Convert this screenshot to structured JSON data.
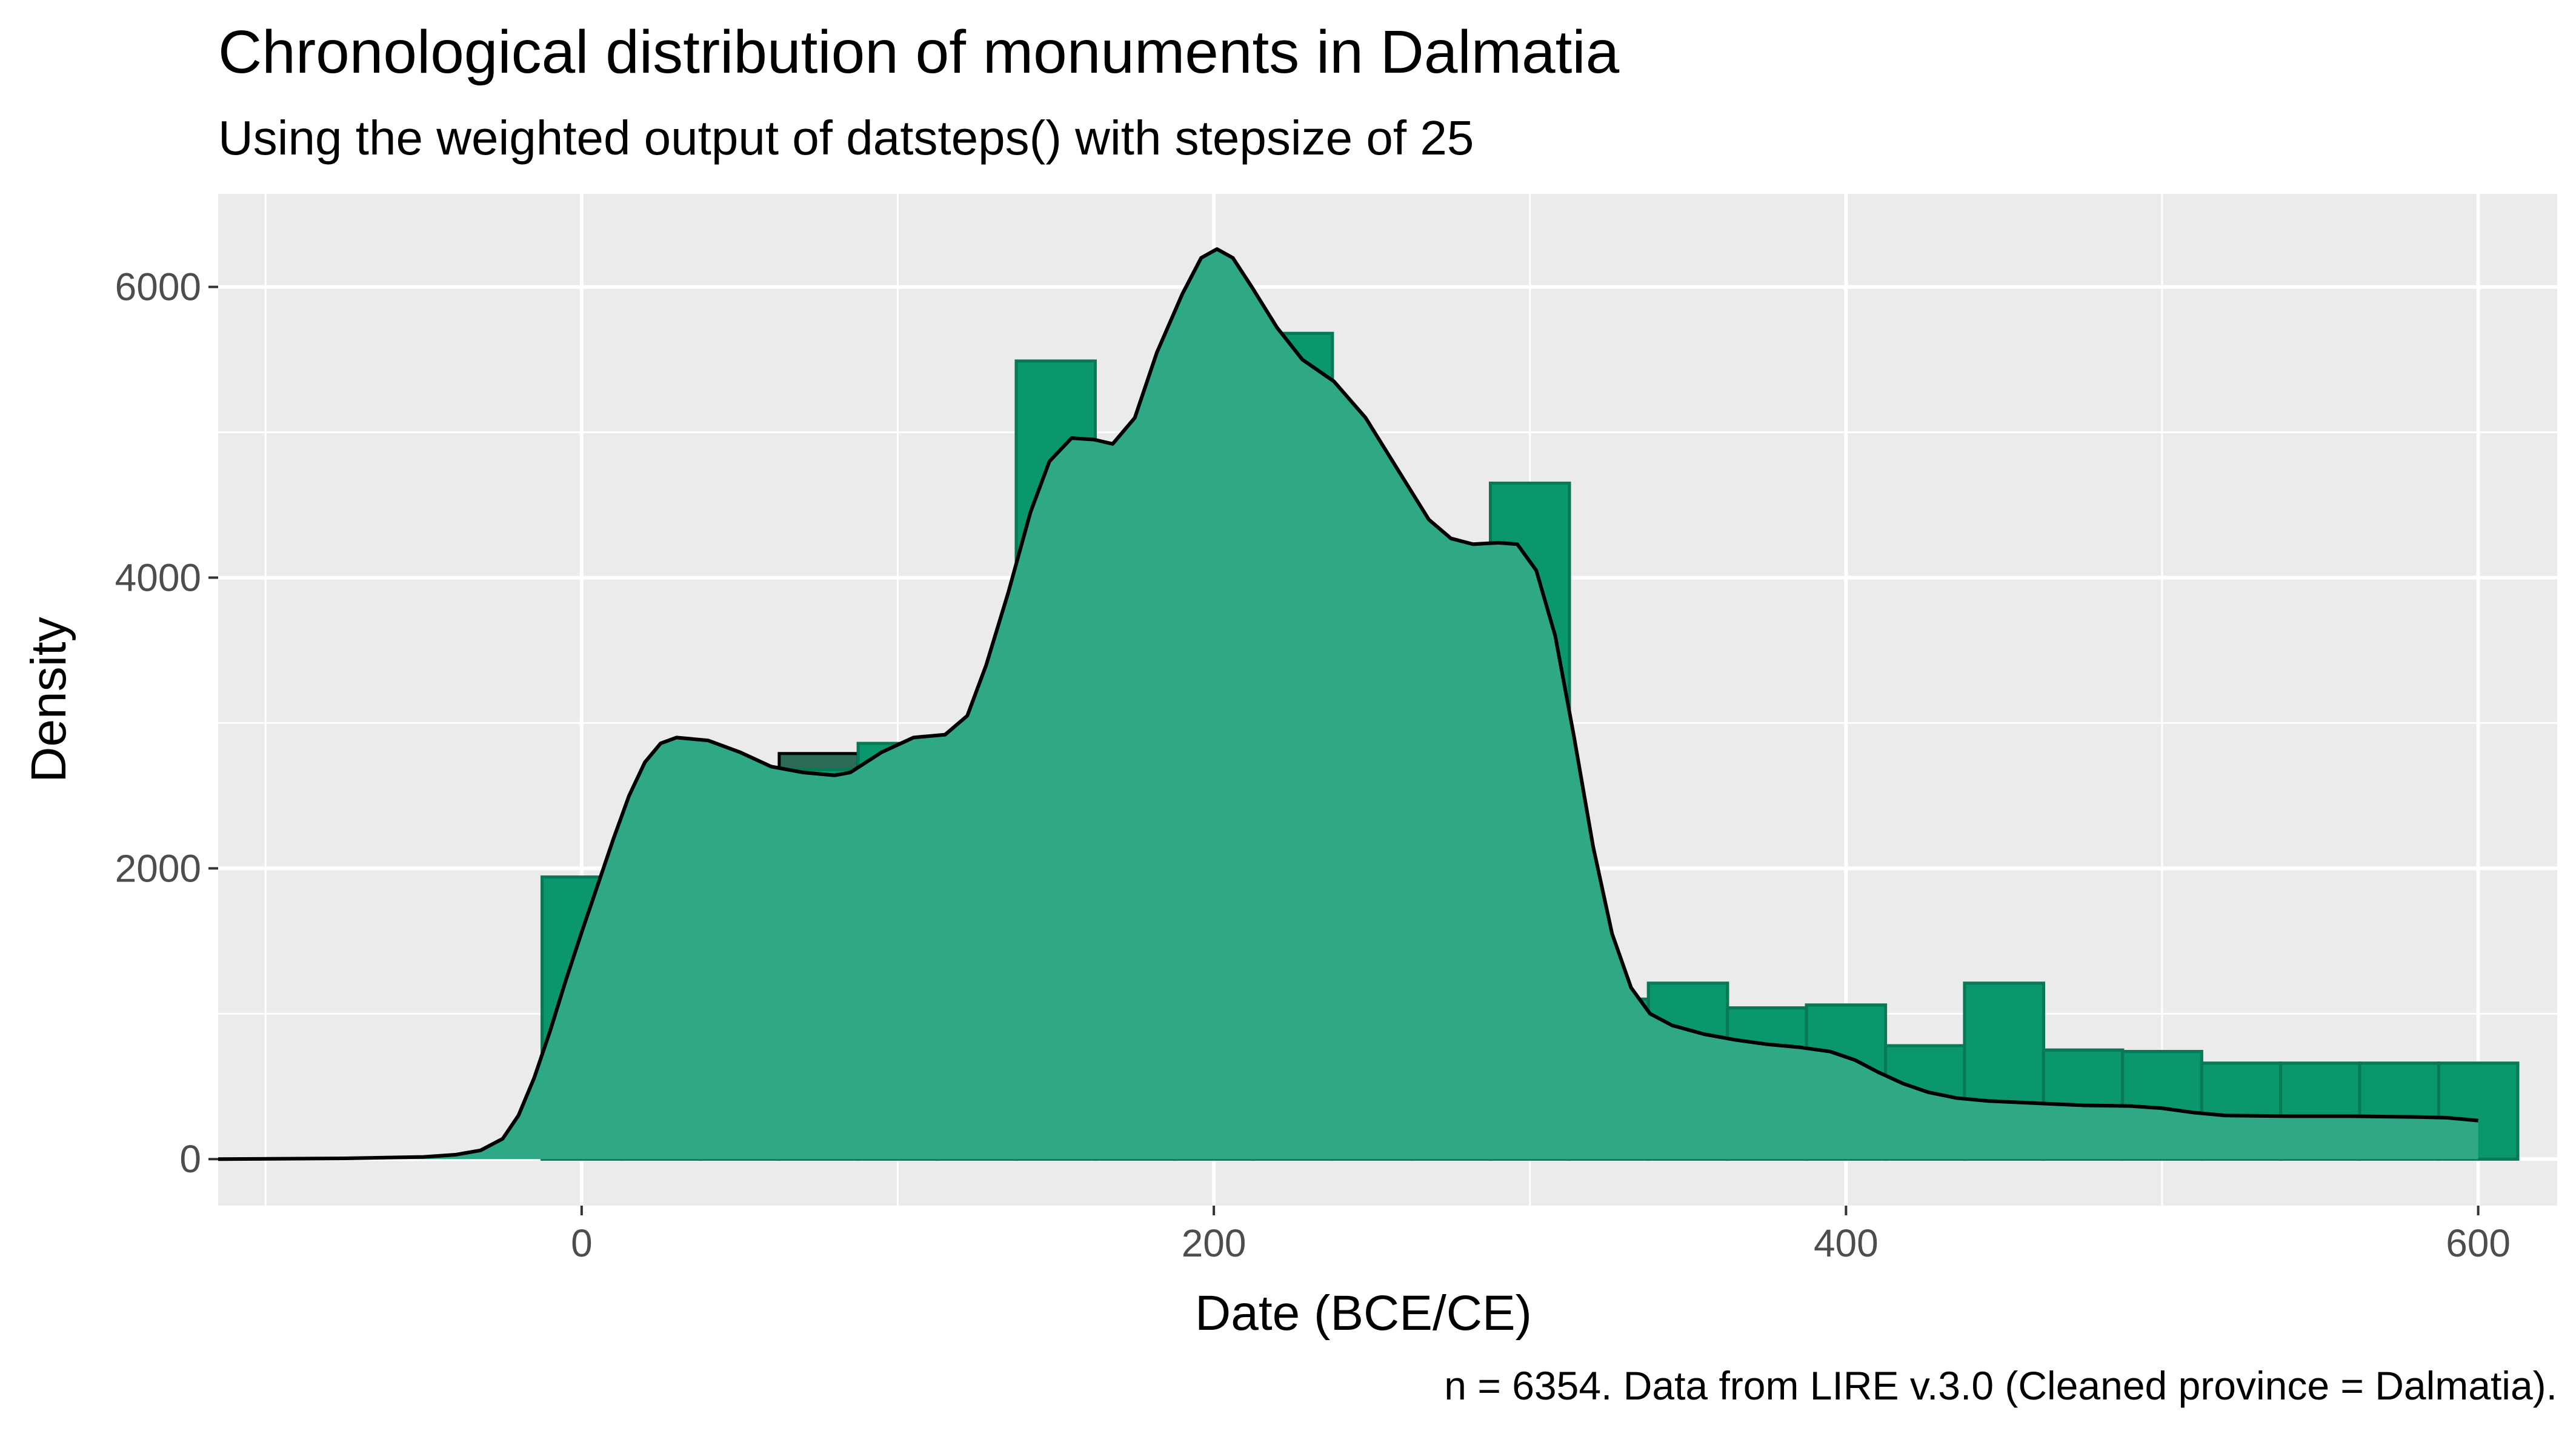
{
  "chart_data": {
    "type": "bar",
    "title": "Chronological distribution of monuments in Dalmatia",
    "subtitle": "Using the weighted output of datsteps() with stepsize of 25",
    "xlabel": "Date (BCE/CE)",
    "ylabel": "Density",
    "caption": "n = 6354. Data from LIRE v.3.0 (Cleaned province = Dalmatia).",
    "xlim": [
      -115,
      625
    ],
    "ylim": [
      -320,
      6640
    ],
    "x_ticks": [
      {
        "value": 0,
        "label": "0"
      },
      {
        "value": 200,
        "label": "200"
      },
      {
        "value": 400,
        "label": "400"
      },
      {
        "value": 600,
        "label": "600"
      }
    ],
    "y_ticks": [
      {
        "value": 0,
        "label": "0"
      },
      {
        "value": 2000,
        "label": "2000"
      },
      {
        "value": 4000,
        "label": "4000"
      },
      {
        "value": 6000,
        "label": "6000"
      }
    ],
    "grid": true,
    "legend": "none",
    "bin_width": 25,
    "bins": [
      {
        "x0": -12.5,
        "histogram": 1940,
        "density_area": 1940
      },
      {
        "x0": 12.5,
        "histogram": 2070,
        "density_area": 2070
      },
      {
        "x0": 37.5,
        "histogram": 2330,
        "density_area": 2330
      },
      {
        "x0": 62.5,
        "histogram": 2790,
        "density_area": 2680
      },
      {
        "x0": 87.5,
        "histogram": 2860,
        "density_area": 2860
      },
      {
        "x0": 112.5,
        "histogram": 2730,
        "density_area": 2730
      },
      {
        "x0": 137.5,
        "histogram": 5490,
        "density_area": 5490
      },
      {
        "x0": 162.5,
        "histogram": 4100,
        "density_area": 4100
      },
      {
        "x0": 187.5,
        "histogram": 4790,
        "density_area": 4790
      },
      {
        "x0": 212.5,
        "histogram": 5680,
        "density_area": 5680
      },
      {
        "x0": 237.5,
        "histogram": 4200,
        "density_area": 4200
      },
      {
        "x0": 262.5,
        "histogram": 3760,
        "density_area": 3760
      },
      {
        "x0": 287.5,
        "histogram": 4650,
        "density_area": 4650
      },
      {
        "x0": 312.5,
        "histogram": 1100,
        "density_area": 1100
      },
      {
        "x0": 337.5,
        "histogram": 1210,
        "density_area": 1210
      },
      {
        "x0": 362.5,
        "histogram": 1040,
        "density_area": 1040
      },
      {
        "x0": 387.5,
        "histogram": 1060,
        "density_area": 1060
      },
      {
        "x0": 412.5,
        "histogram": 780,
        "density_area": 780
      },
      {
        "x0": 437.5,
        "histogram": 1210,
        "density_area": 1210
      },
      {
        "x0": 462.5,
        "histogram": 750,
        "density_area": 750
      },
      {
        "x0": 487.5,
        "histogram": 740,
        "density_area": 740
      },
      {
        "x0": 512.5,
        "histogram": 660,
        "density_area": 660
      },
      {
        "x0": 537.5,
        "histogram": 660,
        "density_area": 660
      },
      {
        "x0": 562.5,
        "histogram": 660,
        "density_area": 660
      },
      {
        "x0": 587.5,
        "histogram": 660,
        "density_area": 660
      }
    ],
    "density_curve": [
      {
        "x": -115,
        "y": 0
      },
      {
        "x": -75,
        "y": 5
      },
      {
        "x": -50,
        "y": 15
      },
      {
        "x": -40,
        "y": 30
      },
      {
        "x": -32,
        "y": 60
      },
      {
        "x": -25,
        "y": 140
      },
      {
        "x": -20,
        "y": 300
      },
      {
        "x": -15,
        "y": 560
      },
      {
        "x": -10,
        "y": 880
      },
      {
        "x": -5,
        "y": 1230
      },
      {
        "x": 0,
        "y": 1560
      },
      {
        "x": 5,
        "y": 1880
      },
      {
        "x": 10,
        "y": 2200
      },
      {
        "x": 15,
        "y": 2500
      },
      {
        "x": 20,
        "y": 2730
      },
      {
        "x": 25,
        "y": 2860
      },
      {
        "x": 30,
        "y": 2900
      },
      {
        "x": 40,
        "y": 2880
      },
      {
        "x": 50,
        "y": 2800
      },
      {
        "x": 60,
        "y": 2700
      },
      {
        "x": 70,
        "y": 2660
      },
      {
        "x": 80,
        "y": 2640
      },
      {
        "x": 85,
        "y": 2660
      },
      {
        "x": 95,
        "y": 2800
      },
      {
        "x": 105,
        "y": 2900
      },
      {
        "x": 115,
        "y": 2920
      },
      {
        "x": 122,
        "y": 3050
      },
      {
        "x": 128,
        "y": 3400
      },
      {
        "x": 135,
        "y": 3900
      },
      {
        "x": 142,
        "y": 4450
      },
      {
        "x": 148,
        "y": 4800
      },
      {
        "x": 155,
        "y": 4960
      },
      {
        "x": 162,
        "y": 4950
      },
      {
        "x": 168,
        "y": 4920
      },
      {
        "x": 175,
        "y": 5100
      },
      {
        "x": 182,
        "y": 5550
      },
      {
        "x": 190,
        "y": 5950
      },
      {
        "x": 196,
        "y": 6200
      },
      {
        "x": 201,
        "y": 6260
      },
      {
        "x": 206,
        "y": 6200
      },
      {
        "x": 212,
        "y": 6000
      },
      {
        "x": 220,
        "y": 5720
      },
      {
        "x": 228,
        "y": 5500
      },
      {
        "x": 238,
        "y": 5350
      },
      {
        "x": 248,
        "y": 5100
      },
      {
        "x": 258,
        "y": 4750
      },
      {
        "x": 268,
        "y": 4400
      },
      {
        "x": 275,
        "y": 4270
      },
      {
        "x": 282,
        "y": 4230
      },
      {
        "x": 290,
        "y": 4240
      },
      {
        "x": 296,
        "y": 4230
      },
      {
        "x": 302,
        "y": 4050
      },
      {
        "x": 308,
        "y": 3600
      },
      {
        "x": 314,
        "y": 2900
      },
      {
        "x": 320,
        "y": 2150
      },
      {
        "x": 326,
        "y": 1550
      },
      {
        "x": 332,
        "y": 1180
      },
      {
        "x": 338,
        "y": 1000
      },
      {
        "x": 345,
        "y": 920
      },
      {
        "x": 355,
        "y": 860
      },
      {
        "x": 365,
        "y": 820
      },
      {
        "x": 375,
        "y": 790
      },
      {
        "x": 385,
        "y": 770
      },
      {
        "x": 395,
        "y": 740
      },
      {
        "x": 403,
        "y": 680
      },
      {
        "x": 410,
        "y": 600
      },
      {
        "x": 418,
        "y": 520
      },
      {
        "x": 426,
        "y": 460
      },
      {
        "x": 435,
        "y": 420
      },
      {
        "x": 445,
        "y": 400
      },
      {
        "x": 460,
        "y": 385
      },
      {
        "x": 475,
        "y": 370
      },
      {
        "x": 490,
        "y": 365
      },
      {
        "x": 500,
        "y": 350
      },
      {
        "x": 510,
        "y": 320
      },
      {
        "x": 520,
        "y": 300
      },
      {
        "x": 540,
        "y": 295
      },
      {
        "x": 560,
        "y": 295
      },
      {
        "x": 580,
        "y": 290
      },
      {
        "x": 590,
        "y": 285
      },
      {
        "x": 600,
        "y": 265
      }
    ],
    "colors": {
      "histogram_fill": "#2e6b57",
      "histogram_outline": "#000000",
      "density_fill": "#2fa985",
      "overlap_fill": "#0a976d",
      "overlap_outline": "#067a57",
      "curve": "#000000",
      "panel_background": "#ebebeb",
      "gridline": "#ffffff"
    }
  }
}
